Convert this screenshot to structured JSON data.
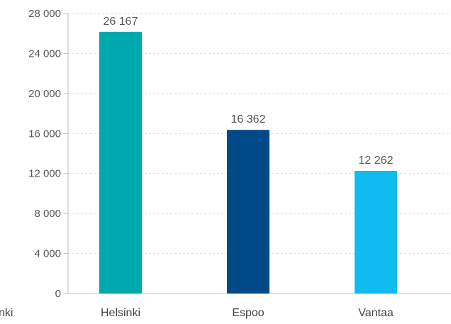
{
  "chart_data": {
    "type": "bar",
    "title": "",
    "xlabel": "",
    "ylabel": "",
    "categories": [
      "Helsinki",
      "Espoo",
      "Vantaa"
    ],
    "values": [
      26167,
      16362,
      12262
    ],
    "value_labels": [
      "26 167",
      "16 362",
      "12 262"
    ],
    "colors": [
      "#00a9b0",
      "#004b87",
      "#10bbef"
    ],
    "ylim": [
      0,
      28000
    ],
    "yticks": [
      0,
      4000,
      8000,
      12000,
      16000,
      20000,
      24000,
      28000
    ],
    "ytick_labels": [
      "0",
      "4 000",
      "8 000",
      "12 000",
      "16 000",
      "20 000",
      "24 000",
      "28 000"
    ],
    "grid": true,
    "left_cut_text": "nki"
  }
}
